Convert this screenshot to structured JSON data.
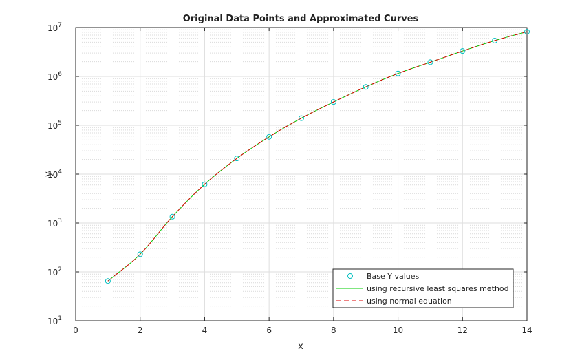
{
  "chart_data": {
    "type": "line",
    "title": "Original Data Points and Approximated Curves",
    "xlabel": "x",
    "ylabel": "y",
    "xlim": [
      0,
      14
    ],
    "ylim": [
      10,
      10000000
    ],
    "yscale": "log",
    "grid": true,
    "minor_grid": true,
    "x_ticks": [
      "0",
      "2",
      "4",
      "6",
      "8",
      "10",
      "12",
      "14"
    ],
    "y_ticks": [
      {
        "base": "10",
        "exp": "1"
      },
      {
        "base": "10",
        "exp": "2"
      },
      {
        "base": "10",
        "exp": "3"
      },
      {
        "base": "10",
        "exp": "4"
      },
      {
        "base": "10",
        "exp": "5"
      },
      {
        "base": "10",
        "exp": "6"
      },
      {
        "base": "10",
        "exp": "7"
      }
    ],
    "legend_position": "bottom-right",
    "series": [
      {
        "name": "Base Y values",
        "style": "markers",
        "marker": "circle",
        "color": "#00bfbf",
        "x": [
          1,
          2,
          3,
          4,
          5,
          6,
          7,
          8,
          9,
          10,
          11,
          12,
          13,
          14
        ],
        "y": [
          65,
          230,
          1350,
          6200,
          21000,
          58000,
          140000,
          300000,
          610000,
          1150000,
          1950000,
          3300000,
          5400000,
          8200000
        ]
      },
      {
        "name": "using recursive least squares method",
        "style": "solid",
        "color": "#00cc00",
        "x": [
          1,
          2,
          3,
          4,
          5,
          6,
          7,
          8,
          9,
          10,
          11,
          12,
          13,
          14
        ],
        "y": [
          65,
          230,
          1350,
          6200,
          21000,
          58000,
          140000,
          300000,
          610000,
          1150000,
          1950000,
          3300000,
          5400000,
          8200000
        ]
      },
      {
        "name": "using normal equation",
        "style": "dashed",
        "color": "#dd0000",
        "x": [
          1,
          2,
          3,
          4,
          5,
          6,
          7,
          8,
          9,
          10,
          11,
          12,
          13,
          14
        ],
        "y": [
          65,
          230,
          1350,
          6200,
          21000,
          58000,
          140000,
          300000,
          610000,
          1150000,
          1950000,
          3300000,
          5400000,
          8200000
        ]
      }
    ]
  }
}
